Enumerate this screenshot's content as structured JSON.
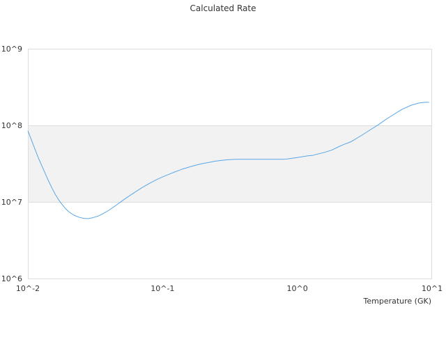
{
  "chart_data": {
    "type": "line",
    "title": "Calculated Rate",
    "xlabel": "Temperature (GK)",
    "ylabel": "",
    "x_scale": "log",
    "y_scale": "log",
    "xlim": [
      0.01,
      10
    ],
    "ylim": [
      1000000,
      1000000000
    ],
    "x_ticks": [
      {
        "value": 0.01,
        "label": "10^-2"
      },
      {
        "value": 0.1,
        "label": "10^-1"
      },
      {
        "value": 1,
        "label": "10^0"
      },
      {
        "value": 10,
        "label": "10^1"
      }
    ],
    "y_ticks": [
      {
        "value": 1000000,
        "label": "10^6"
      },
      {
        "value": 10000000,
        "label": "10^7"
      },
      {
        "value": 100000000,
        "label": "10^8"
      },
      {
        "value": 1000000000,
        "label": "10^9"
      }
    ],
    "grid": true,
    "band": {
      "from": 10000000,
      "to": 100000000,
      "color": "#f2f2f2"
    },
    "series": [
      {
        "color": "#5aa6e6",
        "x": [
          0.01,
          0.011,
          0.012,
          0.013,
          0.014,
          0.015,
          0.016,
          0.017,
          0.018,
          0.019,
          0.02,
          0.022,
          0.024,
          0.026,
          0.028,
          0.03,
          0.033,
          0.036,
          0.04,
          0.045,
          0.05,
          0.055,
          0.06,
          0.07,
          0.08,
          0.09,
          0.1,
          0.12,
          0.14,
          0.16,
          0.18,
          0.2,
          0.25,
          0.3,
          0.35,
          0.4,
          0.5,
          0.6,
          0.7,
          0.8,
          0.9,
          1.0,
          1.2,
          1.3,
          1.4,
          1.6,
          1.8,
          2.0,
          2.2,
          2.5,
          3.0,
          3.5,
          4.0,
          4.5,
          5.0,
          6.0,
          7.0,
          8.0,
          9.0,
          9.5
        ],
        "y": [
          85000000,
          55000000,
          37000000,
          27000000,
          20000000,
          15500000,
          12500000,
          10500000,
          9200000,
          8200000,
          7500000,
          6700000,
          6300000,
          6100000,
          6050000,
          6200000,
          6500000,
          7000000,
          7800000,
          9000000,
          10300000,
          11600000,
          12800000,
          15300000,
          17500000,
          19500000,
          21200000,
          24200000,
          26800000,
          28800000,
          30500000,
          31800000,
          34200000,
          35500000,
          36000000,
          36000000,
          36000000,
          36000000,
          36000000,
          36000000,
          37000000,
          38000000,
          40000000,
          40500000,
          42000000,
          44500000,
          47500000,
          52000000,
          56000000,
          61000000,
          74000000,
          88000000,
          102000000,
          118000000,
          133000000,
          162000000,
          183000000,
          196000000,
          200000000,
          200000000
        ]
      }
    ]
  }
}
